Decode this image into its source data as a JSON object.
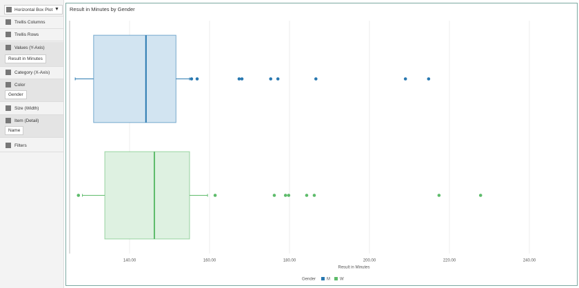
{
  "sidebar": {
    "chart_type": "Horizontal Box Plot",
    "items": [
      "Trellis Columns",
      "Trellis Rows",
      "Values (Y-Axis)",
      "Category (X-Axis)",
      "Color",
      "Size (Width)",
      "Item (Detail)",
      "Filters"
    ],
    "values_field": "Result in Minutes",
    "color_field": "Gender",
    "item_field": "Name"
  },
  "chart_data": {
    "type": "boxplot",
    "orientation": "horizontal",
    "title": "Result in Minutes by Gender",
    "x_label": "Result in Minutes",
    "legend_title": "Gender",
    "xlim": [
      125,
      250
    ],
    "xticks": [
      {
        "value": 140,
        "label": "140.00"
      },
      {
        "value": 160,
        "label": "160.00"
      },
      {
        "value": 180,
        "label": "180.00"
      },
      {
        "value": 200,
        "label": "200.00"
      },
      {
        "value": 220,
        "label": "220.00"
      },
      {
        "value": 240,
        "label": "240.00"
      }
    ],
    "grid": true,
    "legend": "bottom",
    "series": [
      {
        "name": "M",
        "color": "#2878b0",
        "fill": "#d2e4f1",
        "low": 126.4,
        "q1": 131.0,
        "median": 144.1,
        "q3": 151.6,
        "high": 155.0,
        "outliers": [
          155.5,
          156.9,
          167.4,
          168.1,
          175.3,
          177.1,
          186.6,
          209.0,
          214.8
        ]
      },
      {
        "name": "W",
        "color": "#5dbb6a",
        "fill": "#def1e1",
        "low": 128.2,
        "q1": 133.8,
        "median": 146.2,
        "q3": 155.0,
        "high": 159.5,
        "outliers": [
          127.2,
          161.4,
          176.2,
          179.0,
          179.8,
          184.3,
          186.2,
          217.4,
          227.8
        ]
      }
    ]
  }
}
